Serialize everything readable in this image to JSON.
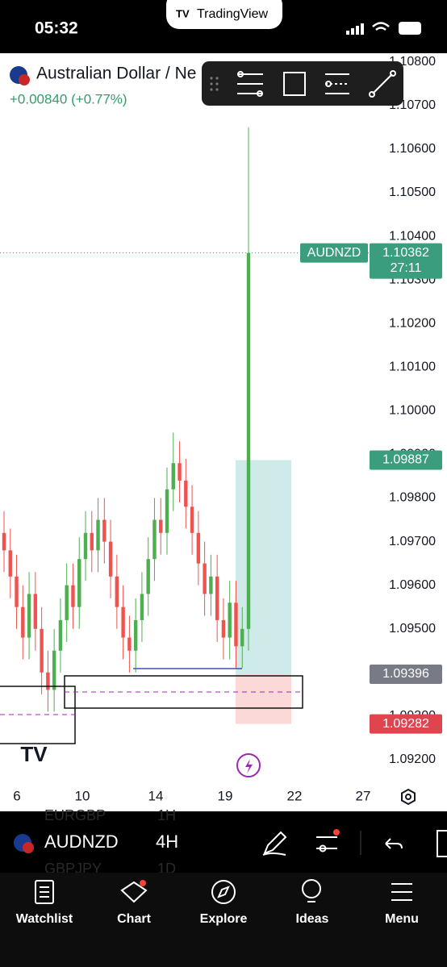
{
  "status_bar": {
    "time": "05:32",
    "app": "TradingView"
  },
  "header": {
    "instrument": "Australian Dollar / Ne",
    "change": "+0.00840 (+0.77%)"
  },
  "chart_data": {
    "type": "candlestick",
    "x_labels": [
      "6",
      "10",
      "14",
      "19",
      "22",
      "27"
    ],
    "up_color": "#4caf50",
    "down_color": "#ef5350",
    "open": [
      1.0972,
      1.0968,
      1.0962,
      1.0955,
      1.0948,
      1.0958,
      1.095,
      1.094,
      1.0936,
      1.0945,
      1.0952,
      1.096,
      1.0955,
      1.0966,
      1.0972,
      1.0968,
      1.0975,
      1.097,
      1.0962,
      1.0955,
      1.0948,
      1.0945,
      1.0952,
      1.0958,
      1.0966,
      1.0975,
      1.0972,
      1.0982,
      1.0988,
      1.0984,
      1.0978,
      1.0972,
      1.0965,
      1.0958,
      1.0962,
      1.0952,
      1.0948,
      1.0956,
      1.0946,
      1.095
    ],
    "high": [
      1.0977,
      1.0973,
      1.0967,
      1.096,
      1.0963,
      1.0963,
      1.0955,
      1.0945,
      1.095,
      1.0957,
      1.0965,
      1.0965,
      1.0971,
      1.0977,
      1.0977,
      1.098,
      1.098,
      1.0975,
      1.0967,
      1.096,
      1.0953,
      1.0957,
      1.0963,
      1.0971,
      1.098,
      1.098,
      1.0987,
      1.0995,
      1.0993,
      1.0989,
      1.0983,
      1.0977,
      1.097,
      1.0967,
      1.0967,
      1.0957,
      1.0961,
      1.0961,
      1.0955,
      1.1065
    ],
    "low": [
      1.0963,
      1.0957,
      1.095,
      1.0943,
      1.0943,
      1.0945,
      1.0935,
      1.0931,
      1.0931,
      1.094,
      1.0947,
      1.095,
      1.095,
      1.0961,
      1.0963,
      1.0963,
      1.0965,
      1.0957,
      1.095,
      1.0943,
      1.094,
      1.094,
      1.0947,
      1.0953,
      1.0961,
      1.0967,
      1.0967,
      1.0977,
      1.0979,
      1.0973,
      1.0967,
      1.096,
      1.0953,
      1.0953,
      1.0947,
      1.0943,
      1.0943,
      1.0941,
      1.0941,
      1.0945
    ],
    "close": [
      1.0968,
      1.0962,
      1.0955,
      1.0948,
      1.0958,
      1.095,
      1.094,
      1.0936,
      1.0945,
      1.0952,
      1.096,
      1.0955,
      1.0966,
      1.0972,
      1.0968,
      1.0975,
      1.097,
      1.0962,
      1.0955,
      1.0948,
      1.0945,
      1.0952,
      1.0958,
      1.0966,
      1.0975,
      1.0972,
      1.0982,
      1.0988,
      1.0984,
      1.0978,
      1.0972,
      1.0965,
      1.0958,
      1.0962,
      1.0952,
      1.0948,
      1.0956,
      1.0946,
      1.095,
      1.10362
    ],
    "ylim": [
      1.0916,
      1.1082
    ],
    "yticks": [
      {
        "value": 1.092,
        "label": "1.09200"
      },
      {
        "value": 1.093,
        "label": "1.09300"
      },
      {
        "value": 1.094,
        "label": "1.09400"
      },
      {
        "value": 1.095,
        "label": "1.09500"
      },
      {
        "value": 1.096,
        "label": "1.09600"
      },
      {
        "value": 1.097,
        "label": "1.09700"
      },
      {
        "value": 1.098,
        "label": "1.09800"
      },
      {
        "value": 1.099,
        "label": "1.09900"
      },
      {
        "value": 1.1,
        "label": "1.10000"
      },
      {
        "value": 1.101,
        "label": "1.10100"
      },
      {
        "value": 1.102,
        "label": "1.10200"
      },
      {
        "value": 1.103,
        "label": "1.10300"
      },
      {
        "value": 1.104,
        "label": "1.10400"
      },
      {
        "value": 1.105,
        "label": "1.10500"
      },
      {
        "value": 1.106,
        "label": "1.10600"
      },
      {
        "value": 1.107,
        "label": "1.10700"
      },
      {
        "value": 1.108,
        "label": "1.10800"
      }
    ],
    "price_badges": {
      "symbol": "AUDNZD",
      "last": 1.10362,
      "countdown": "27:11",
      "target": 1.09887,
      "entry": 1.09396,
      "stop": 1.09282
    }
  },
  "symbol_bar": {
    "symbol": "AUDNZD",
    "interval": "4H",
    "ghost_rows": [
      [
        "EURGBP",
        "1H"
      ],
      [
        "GBPJPY",
        "1D"
      ]
    ]
  },
  "nav": [
    "Watchlist",
    "Chart",
    "Explore",
    "Ideas",
    "Menu"
  ]
}
